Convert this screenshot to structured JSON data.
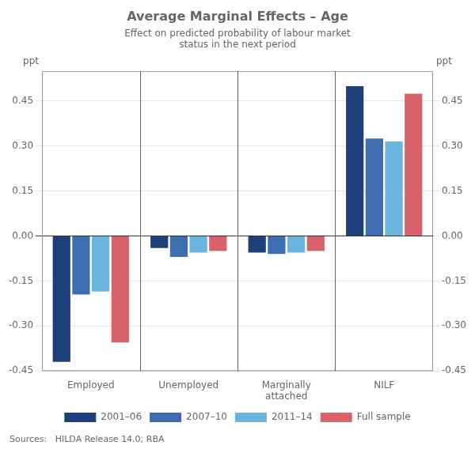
{
  "chart_data": {
    "type": "bar",
    "title": "Average Marginal Effects – Age",
    "subtitle": "Effect on predicted probability of labour market\nstatus in the next period",
    "ylabel": "ppt",
    "y2label": "ppt",
    "source": "Sources:   HILDA Release 14.0; RBA",
    "categories": [
      "Employed",
      "Unemployed",
      "Marginally\nattached",
      "NILF"
    ],
    "series": [
      {
        "name": "2001–06",
        "color": "#1F3F7A",
        "values": [
          -0.42,
          -0.04,
          -0.055,
          0.5
        ]
      },
      {
        "name": "2007–10",
        "color": "#3C6DB0",
        "values": [
          -0.195,
          -0.07,
          -0.06,
          0.325
        ]
      },
      {
        "name": "2011–14",
        "color": "#6AB4E0",
        "values": [
          -0.185,
          -0.055,
          -0.055,
          0.315
        ]
      },
      {
        "name": "Full sample",
        "color": "#D9626A",
        "values": [
          -0.355,
          -0.05,
          -0.05,
          0.475
        ]
      }
    ],
    "ylim": [
      -0.45,
      0.55
    ],
    "yticks": [
      -0.45,
      {
        "value": -0.3,
        "label": "-0.30"
      },
      -0.15,
      {
        "value": 0,
        "label": "0.00"
      },
      0.15,
      {
        "value": 0.3,
        "label": "0.30"
      },
      0.45
    ],
    "y2lim": [
      -0.45,
      0.55
    ],
    "y2ticks": [
      -0.45,
      {
        "value": -0.3,
        "label": "-0.30"
      },
      -0.15,
      {
        "value": 0,
        "label": "0.00"
      },
      0.15,
      {
        "value": 0.3,
        "label": "0.30"
      },
      0.45
    ],
    "grid": true,
    "legend": "bottom"
  }
}
